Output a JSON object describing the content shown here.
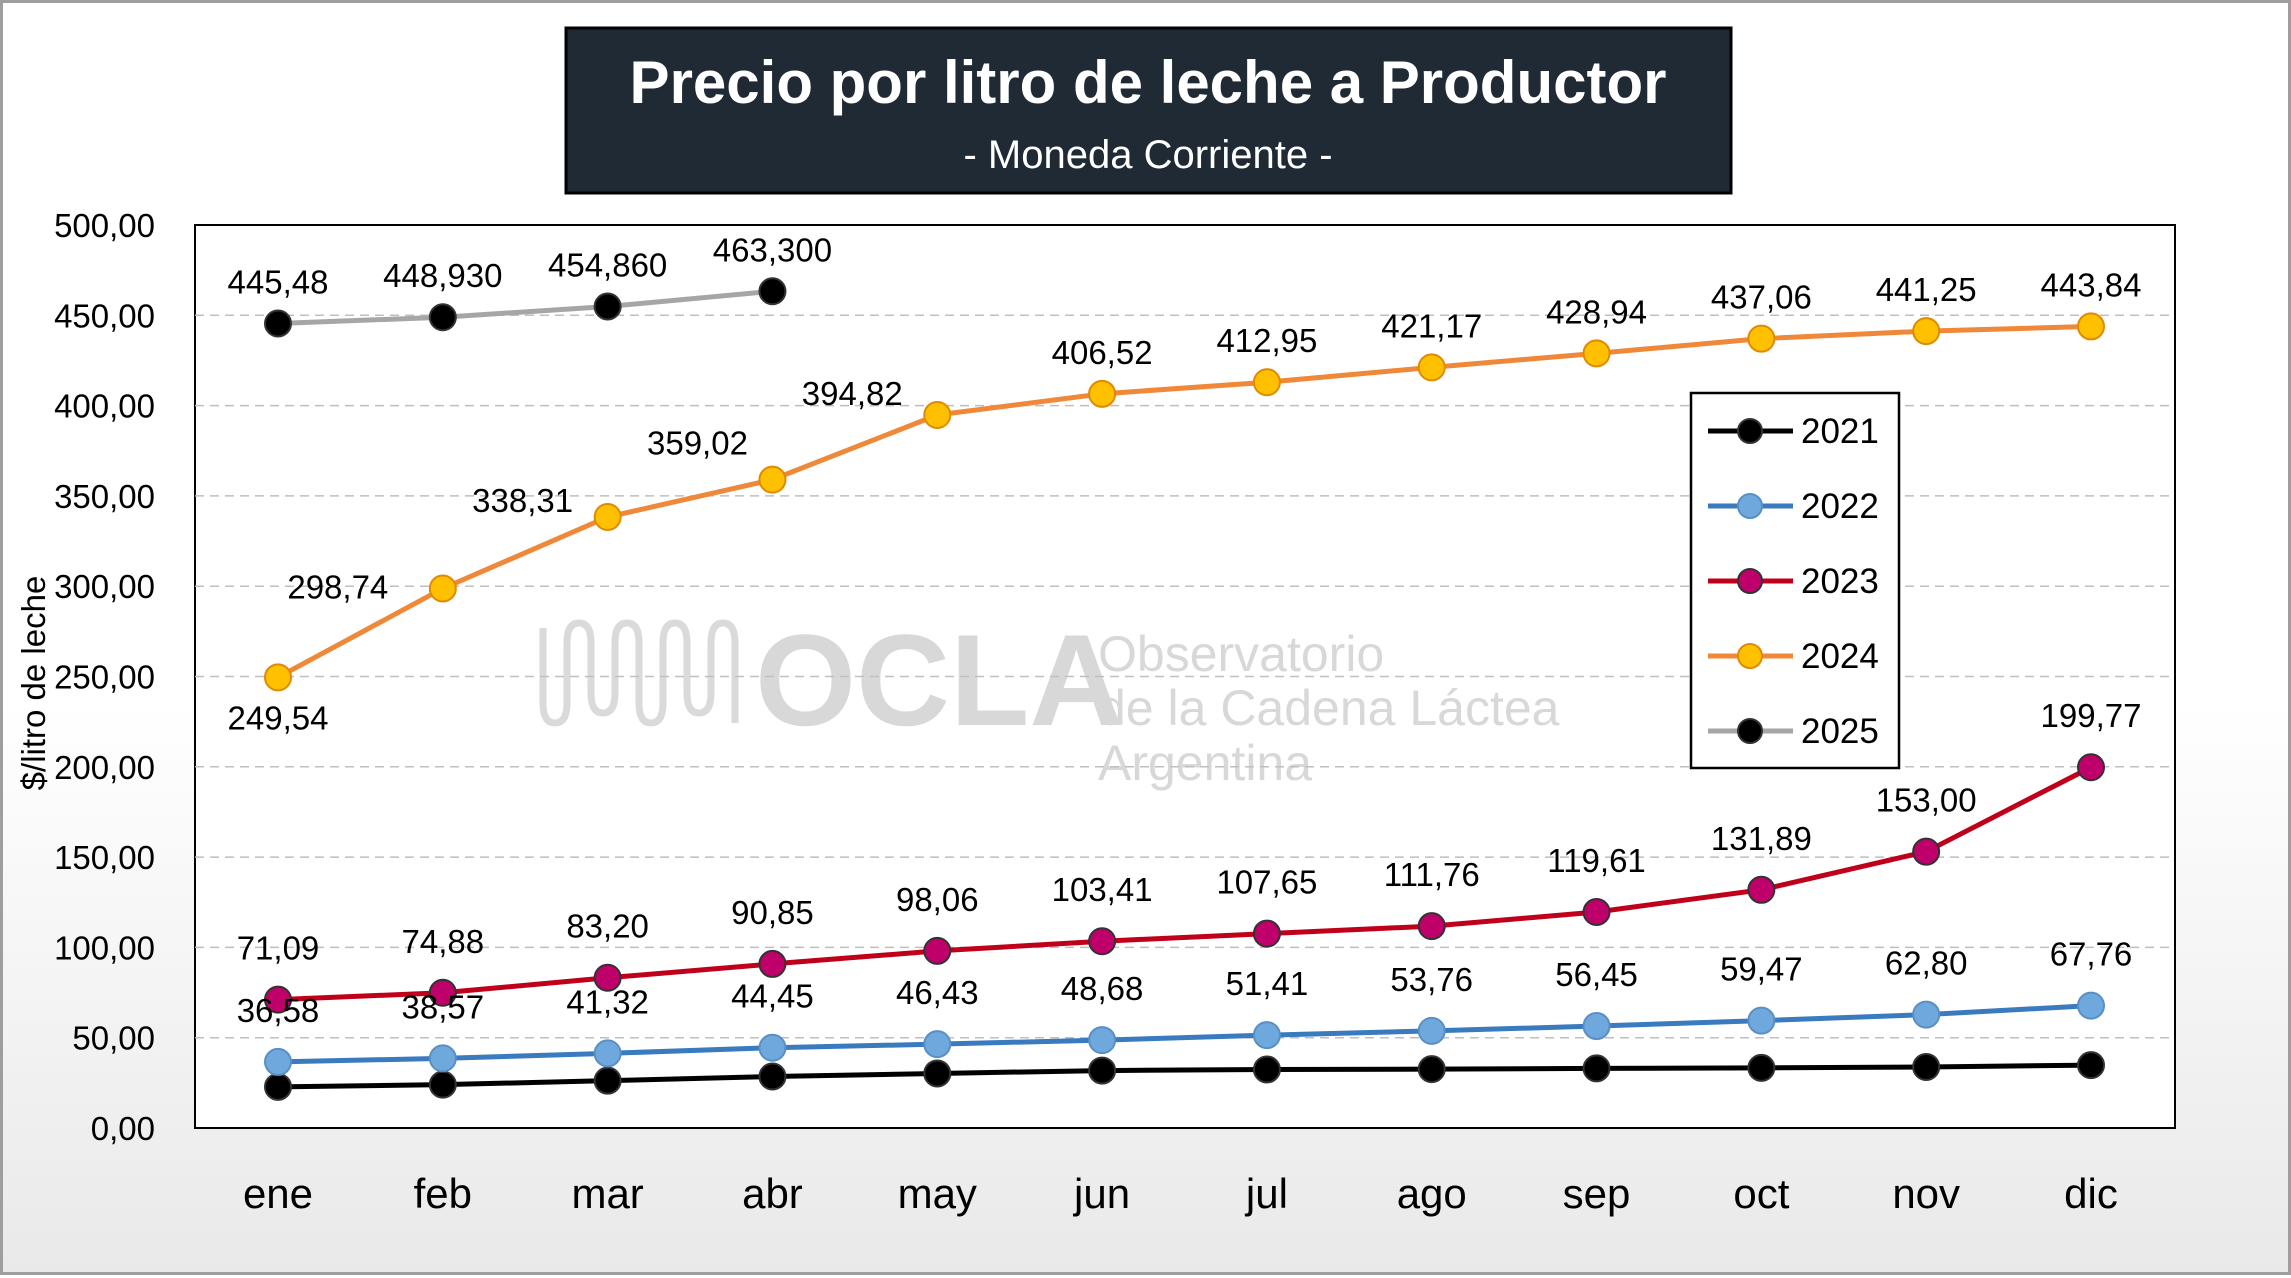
{
  "chart_data": {
    "type": "line",
    "title": "Precio por litro de leche a Productor",
    "subtitle": "- Moneda Corriente -",
    "ylabel": "$/litro de leche",
    "xlabel": "",
    "categories": [
      "ene",
      "feb",
      "mar",
      "abr",
      "may",
      "jun",
      "jul",
      "ago",
      "sep",
      "oct",
      "nov",
      "dic"
    ],
    "y_ticks": [
      "0,00",
      "50,00",
      "100,00",
      "150,00",
      "200,00",
      "250,00",
      "300,00",
      "350,00",
      "400,00",
      "450,00",
      "500,00"
    ],
    "ylim": [
      0,
      500
    ],
    "grid": true,
    "legend_position": "right",
    "series": [
      {
        "name": "2021",
        "color": "#000000",
        "marker_color": "#000000",
        "values": [
          22.8,
          24.0,
          26.2,
          28.5,
          30.2,
          31.8,
          32.4,
          32.6,
          33.0,
          33.3,
          33.8,
          34.8
        ],
        "labels": []
      },
      {
        "name": "2022",
        "color": "#3a7abf",
        "marker_color": "#6fa8dc",
        "values": [
          36.58,
          38.57,
          41.32,
          44.45,
          46.43,
          48.68,
          51.41,
          53.76,
          56.45,
          59.47,
          62.8,
          67.76
        ],
        "labels": [
          "36,58",
          "38,57",
          "41,32",
          "44,45",
          "46,43",
          "48,68",
          "51,41",
          "53,76",
          "56,45",
          "59,47",
          "62,80",
          "67,76"
        ]
      },
      {
        "name": "2023",
        "color": "#c0001a",
        "marker_color": "#c0006a",
        "values": [
          71.09,
          74.88,
          83.2,
          90.85,
          98.06,
          103.41,
          107.65,
          111.76,
          119.61,
          131.89,
          153.0,
          199.77
        ],
        "labels": [
          "71,09",
          "74,88",
          "83,20",
          "90,85",
          "98,06",
          "103,41",
          "107,65",
          "111,76",
          "119,61",
          "131,89",
          "153,00",
          "199,77"
        ]
      },
      {
        "name": "2024",
        "color": "#f0883a",
        "marker_color": "#ffc000",
        "values": [
          249.54,
          298.74,
          338.31,
          359.02,
          394.82,
          406.52,
          412.95,
          421.17,
          428.94,
          437.06,
          441.25,
          443.84
        ],
        "labels": [
          "249,54",
          "298,74",
          "338,31",
          "359,02",
          "394,82",
          "406,52",
          "412,95",
          "421,17",
          "428,94",
          "437,06",
          "441,25",
          "443,84"
        ]
      },
      {
        "name": "2025",
        "color": "#a6a6a6",
        "marker_color": "#000000",
        "values": [
          445.48,
          448.93,
          454.86,
          463.3,
          null,
          null,
          null,
          null,
          null,
          null,
          null,
          null
        ],
        "labels": [
          "445,48",
          "448,930",
          "454,860",
          "463,300"
        ]
      }
    ],
    "watermark": {
      "logo_text": "OCLA",
      "line1": "Observatorio",
      "line2": "de la Cadena Láctea",
      "line3": "Argentina"
    }
  }
}
